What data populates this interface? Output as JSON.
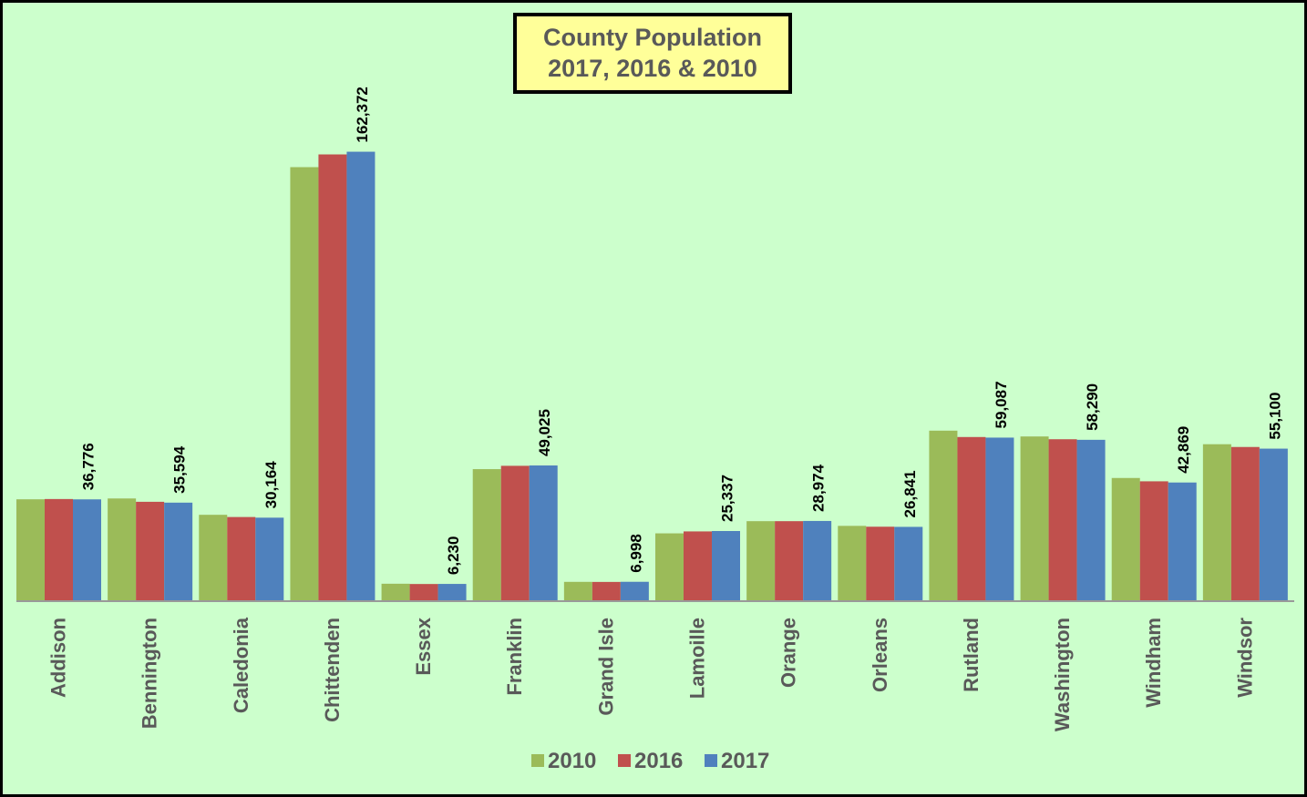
{
  "chart_data": {
    "type": "bar",
    "title": "County Population\n2017, 2016 & 2010",
    "categories": [
      "Addison",
      "Bennington",
      "Caledonia",
      "Chittenden",
      "Essex",
      "Franklin",
      "Grand Isle",
      "Lamoille",
      "Orange",
      "Orleans",
      "Rutland",
      "Washington",
      "Windham",
      "Windsor"
    ],
    "series": [
      {
        "name": "2010",
        "color": "#9bbb59",
        "values": [
          36800,
          37100,
          31200,
          156800,
          6300,
          47700,
          6970,
          24500,
          28900,
          27200,
          61600,
          59500,
          44500,
          56700
        ]
      },
      {
        "name": "2016",
        "color": "#c0504d",
        "values": [
          36900,
          35900,
          30400,
          161400,
          6200,
          48900,
          6950,
          25200,
          28900,
          26900,
          59300,
          58500,
          43300,
          55700
        ]
      },
      {
        "name": "2017",
        "color": "#4f81bd",
        "values": [
          36776,
          35594,
          30164,
          162372,
          6230,
          49025,
          6998,
          25337,
          28974,
          26841,
          59087,
          58290,
          42869,
          55100
        ],
        "value_labels": [
          "36,776",
          "35,594",
          "30,164",
          "162,372",
          "6,230",
          "49,025",
          "6,998",
          "25,337",
          "28,974",
          "26,841",
          "59,087",
          "58,290",
          "42,869",
          "55,100"
        ]
      }
    ],
    "ylim": [
      0,
      180000
    ],
    "legend": "bottom"
  }
}
